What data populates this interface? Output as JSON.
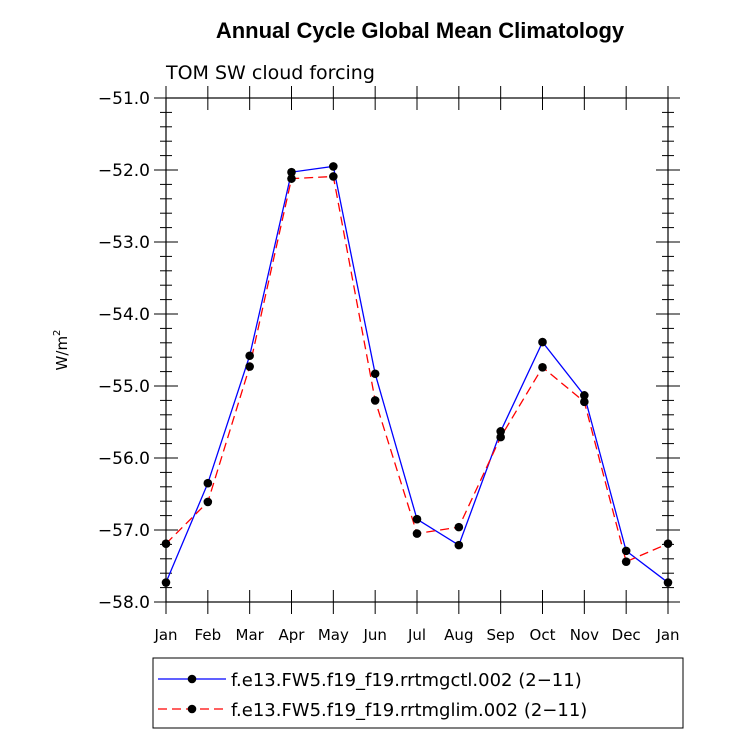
{
  "chart_data": {
    "type": "line",
    "title": "Annual Cycle Global Mean Climatology",
    "subtitle": "TOM SW cloud forcing",
    "ylabel_base": "W/m",
    "ylabel_sup": "2",
    "xlabel": "",
    "ylim": [
      -58.0,
      -51.0
    ],
    "yticks": [
      -51.0,
      -52.0,
      -53.0,
      -54.0,
      -55.0,
      -56.0,
      -57.0,
      -58.0
    ],
    "ytick_labels": [
      "−51.0",
      "−52.0",
      "−53.0",
      "−54.0",
      "−55.0",
      "−56.0",
      "−57.0",
      "−58.0"
    ],
    "categories": [
      "Jan",
      "Feb",
      "Mar",
      "Apr",
      "May",
      "Jun",
      "Jul",
      "Aug",
      "Sep",
      "Oct",
      "Nov",
      "Dec",
      "Jan"
    ],
    "series": [
      {
        "name": "f.e13.FW5.f19_f19.rrtmgctl.002 (2−11)",
        "color": "#0000ff",
        "dash": "solid",
        "values": [
          -57.73,
          -56.35,
          -54.58,
          -52.03,
          -51.95,
          -54.83,
          -56.85,
          -57.21,
          -55.63,
          -54.39,
          -55.13,
          -57.29,
          -57.73
        ]
      },
      {
        "name": "f.e13.FW5.f19_f19.rrtmglim.002 (2−11)",
        "color": "#ff0000",
        "dash": "dashed",
        "values": [
          -57.19,
          -56.61,
          -54.73,
          -52.12,
          -52.09,
          -55.2,
          -57.05,
          -56.96,
          -55.71,
          -54.74,
          -55.22,
          -57.44,
          -57.19
        ]
      }
    ]
  }
}
